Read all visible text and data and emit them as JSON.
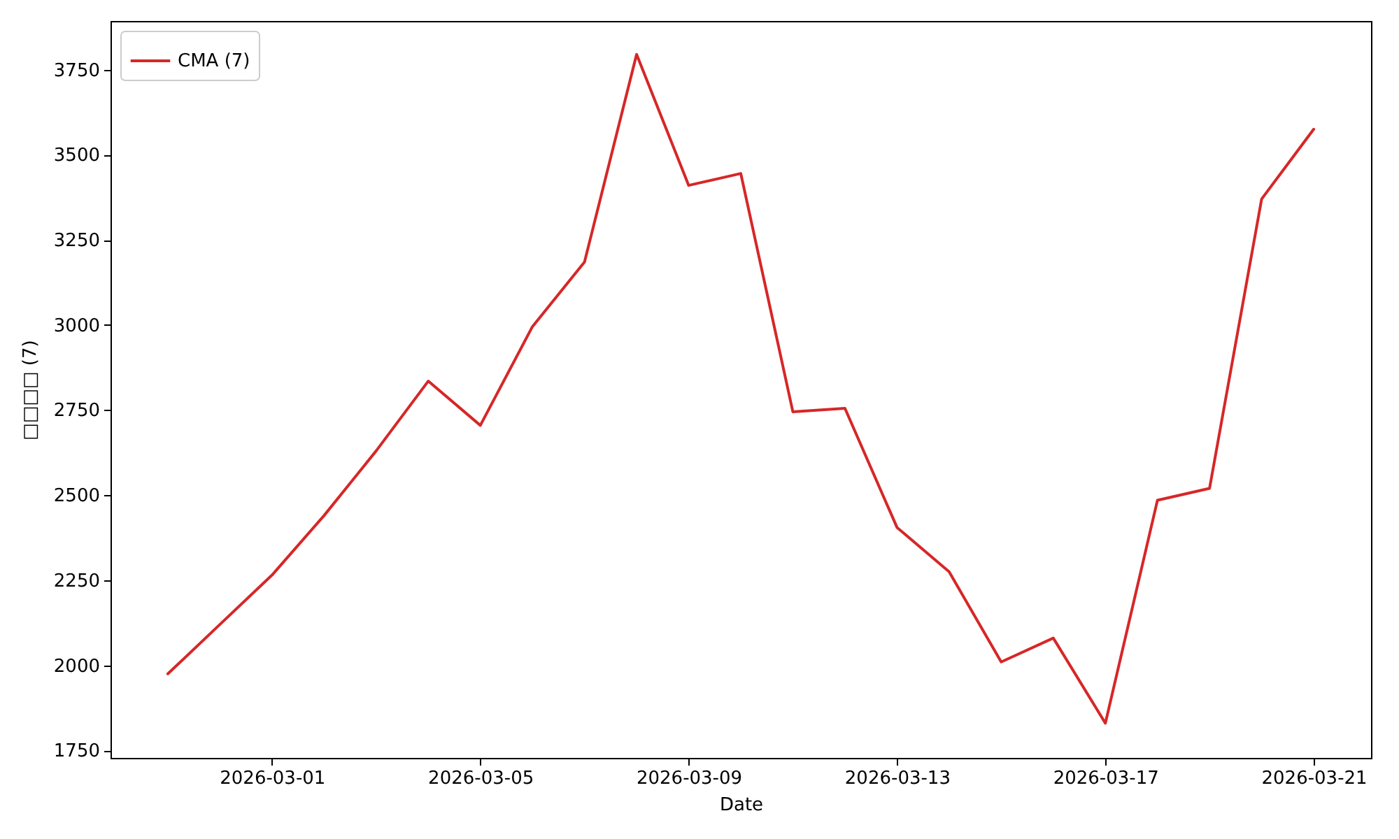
{
  "chart_data": {
    "type": "line",
    "xlabel": "Date",
    "ylabel": "□□□□ (7)",
    "x": [
      "2026-02-27",
      "2026-02-28",
      "2026-03-01",
      "2026-03-02",
      "2026-03-03",
      "2026-03-04",
      "2026-03-05",
      "2026-03-06",
      "2026-03-07",
      "2026-03-08",
      "2026-03-09",
      "2026-03-10",
      "2026-03-11",
      "2026-03-12",
      "2026-03-13",
      "2026-03-14",
      "2026-03-15",
      "2026-03-16",
      "2026-03-17",
      "2026-03-18",
      "2026-03-19",
      "2026-03-20",
      "2026-03-21"
    ],
    "series": [
      {
        "name": "CMA (7)",
        "color": "#d62728",
        "values": [
          1975,
          2120,
          2265,
          2440,
          2630,
          2835,
          2705,
          2995,
          3185,
          3795,
          3410,
          3445,
          2745,
          2755,
          2405,
          2275,
          2010,
          2080,
          1830,
          2485,
          2520,
          3370,
          3575
        ]
      }
    ],
    "xlim": [
      "2026-02-25T21:36",
      "2026-03-22T02:24"
    ],
    "ylim": [
      1728,
      3893
    ],
    "xticks": [
      "2026-03-01",
      "2026-03-05",
      "2026-03-09",
      "2026-03-13",
      "2026-03-17",
      "2026-03-21"
    ],
    "yticks": [
      1750,
      2000,
      2250,
      2500,
      2750,
      3000,
      3250,
      3500,
      3750
    ],
    "legend": "top left",
    "grid": false,
    "line_style": "solid",
    "marker": "none"
  }
}
